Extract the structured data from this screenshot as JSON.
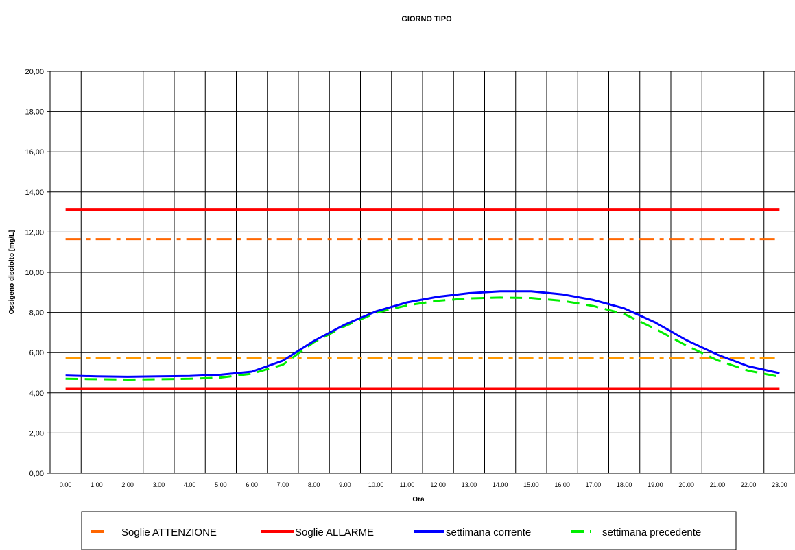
{
  "chart_data": {
    "type": "line",
    "title": "GIORNO TIPO",
    "xlabel": "Ora",
    "ylabel": "Ossigeno disciolto [mg/L]",
    "ylim": [
      0,
      20
    ],
    "yticks": [
      "0,00",
      "2,00",
      "4,00",
      "6,00",
      "8,00",
      "10,00",
      "12,00",
      "14,00",
      "16,00",
      "18,00",
      "20,00"
    ],
    "categories": [
      "0.00",
      "1.00",
      "2.00",
      "3.00",
      "4.00",
      "5.00",
      "6.00",
      "7.00",
      "8.00",
      "9.00",
      "10.00",
      "11.00",
      "12.00",
      "13.00",
      "14.00",
      "15.00",
      "16.00",
      "17.00",
      "18.00",
      "19.00",
      "20.00",
      "21.00",
      "22.00",
      "23.00"
    ],
    "grid": true,
    "legend_position": "bottom",
    "thresholds": [
      {
        "group": "Soglie ATTENZIONE",
        "value": 11.65,
        "color": "#ff6600",
        "style": "dashdot"
      },
      {
        "group": "Soglie ATTENZIONE",
        "value": 5.72,
        "color": "#ff9900",
        "style": "dashdot"
      },
      {
        "group": "Soglie ALLARME",
        "value": 13.12,
        "color": "#ff0000",
        "style": "solid"
      },
      {
        "group": "Soglie ALLARME",
        "value": 4.2,
        "color": "#ff0000",
        "style": "solid"
      }
    ],
    "series": [
      {
        "name": "settimana corrente",
        "color": "#0000ff",
        "style": "solid",
        "values": [
          4.86,
          4.82,
          4.8,
          4.82,
          4.84,
          4.9,
          5.05,
          5.6,
          6.58,
          7.4,
          8.05,
          8.5,
          8.78,
          8.96,
          9.05,
          9.05,
          8.9,
          8.62,
          8.2,
          7.5,
          6.62,
          5.9,
          5.32,
          4.98
        ]
      },
      {
        "name": "settimana precedente",
        "color": "#00ee00",
        "style": "dashed",
        "values": [
          4.7,
          4.68,
          4.66,
          4.68,
          4.7,
          4.76,
          4.95,
          5.4,
          6.52,
          7.32,
          7.98,
          8.35,
          8.58,
          8.7,
          8.74,
          8.72,
          8.58,
          8.32,
          7.92,
          7.18,
          6.35,
          5.62,
          5.1,
          4.8
        ]
      }
    ],
    "legend": [
      {
        "label": "Soglie ATTENZIONE",
        "color": "#ff6600",
        "style": "dashed"
      },
      {
        "label": "Soglie ALLARME",
        "color": "#ff0000",
        "style": "solid"
      },
      {
        "label": "settimana corrente",
        "color": "#0000ff",
        "style": "solid"
      },
      {
        "label": "settimana precedente",
        "color": "#00ee00",
        "style": "dashed"
      }
    ]
  }
}
